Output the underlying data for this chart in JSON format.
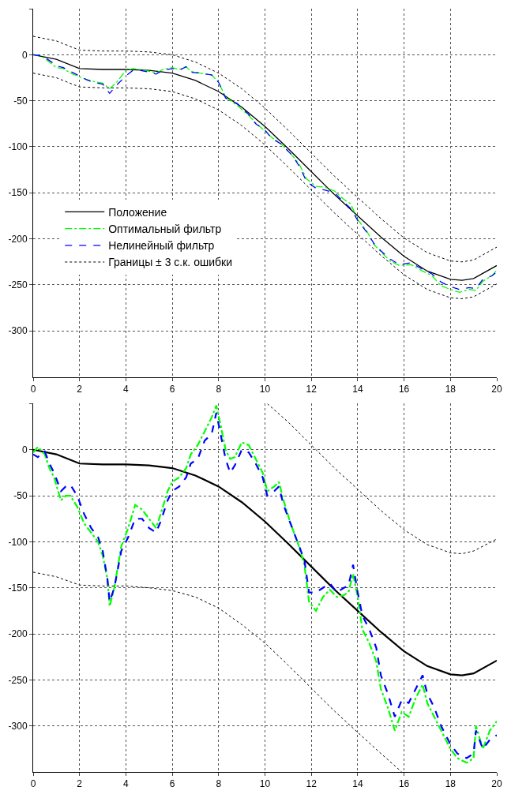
{
  "chart_data": [
    {
      "type": "line",
      "xlim": [
        0,
        20
      ],
      "ylim": [
        -350,
        50
      ],
      "xticks": [
        0,
        2,
        4,
        6,
        8,
        10,
        12,
        14,
        16,
        18,
        20
      ],
      "yticks": [
        -300,
        -250,
        -200,
        -150,
        -100,
        -50,
        0,
        {
          "value": 50,
          "label": null
        }
      ],
      "grid": true,
      "legend": "left",
      "series": [
        {
          "name": "Положение",
          "color": "#000000",
          "line_style": "solid",
          "x": [
            0,
            1,
            2,
            3,
            4,
            5,
            6,
            7,
            8,
            9,
            10,
            11,
            12,
            13,
            14,
            15,
            16,
            17,
            18,
            18.5,
            19,
            20
          ],
          "values": [
            0,
            -5,
            -15,
            -16,
            -16,
            -17,
            -20,
            -28,
            -40,
            -57,
            -78,
            -102,
            -127,
            -152,
            -175,
            -198,
            -219,
            -235,
            -244,
            -245,
            -243,
            -229
          ]
        },
        {
          "name": "Оптимальный фильтр",
          "color": "#00ff00",
          "line_style": "dashdot",
          "x": [
            0,
            0.3,
            0.5,
            0.8,
            1,
            1.3,
            1.6,
            2,
            2.3,
            2.6,
            3,
            3.3,
            3.6,
            4,
            4.3,
            4.6,
            5,
            5.3,
            5.6,
            6,
            6.3,
            6.6,
            6.8,
            7.2,
            7.7,
            8,
            8.3,
            8.8,
            9.3,
            9.6,
            10,
            10.3,
            10.7,
            11.2,
            11.5,
            11.8,
            12.2,
            12.6,
            13,
            13.4,
            13.7,
            14,
            14.4,
            14.7,
            15,
            15.4,
            15.8,
            16.3,
            16.8,
            17.2,
            17.6,
            18,
            18.4,
            18.8,
            19.1,
            19.4,
            19.8,
            20
          ],
          "values": [
            0,
            -1,
            -4,
            -10,
            -14,
            -15,
            -20,
            -24,
            -27,
            -29,
            -31,
            -37,
            -30,
            -17,
            -15,
            -16,
            -18,
            -20,
            -16,
            -14,
            -16,
            -13,
            -18,
            -20,
            -22,
            -30,
            -46,
            -55,
            -66,
            -74,
            -83,
            -90,
            -97,
            -110,
            -120,
            -135,
            -143,
            -144,
            -148,
            -157,
            -162,
            -179,
            -192,
            -206,
            -214,
            -224,
            -229,
            -228,
            -235,
            -240,
            -251,
            -255,
            -258,
            -255,
            -256,
            -246,
            -240,
            -234
          ]
        },
        {
          "name": "Нелинейный фильтр",
          "color": "#0000ff",
          "line_style": "dashed",
          "x": [
            0,
            0.3,
            0.5,
            0.8,
            1,
            1.3,
            1.6,
            2,
            2.3,
            2.6,
            3,
            3.3,
            3.6,
            4,
            4.3,
            4.6,
            5,
            5.3,
            5.6,
            6,
            6.3,
            6.6,
            6.8,
            7.2,
            7.7,
            8,
            8.3,
            8.8,
            9.3,
            9.6,
            10,
            10.3,
            10.7,
            11.2,
            11.5,
            11.8,
            12.2,
            12.6,
            13,
            13.4,
            13.7,
            14,
            14.4,
            14.7,
            15,
            15.4,
            15.8,
            16.3,
            16.8,
            17.2,
            17.6,
            18,
            18.4,
            18.8,
            19.1,
            19.4,
            19.8,
            20
          ],
          "values": [
            0,
            -1,
            -3,
            -8,
            -12,
            -14,
            -18,
            -23,
            -27,
            -30,
            -32,
            -42,
            -33,
            -23,
            -17,
            -17,
            -19,
            -21,
            -17,
            -15,
            -17,
            -13,
            -19,
            -20,
            -22,
            -30,
            -47,
            -53,
            -65,
            -75,
            -82,
            -91,
            -97,
            -110,
            -122,
            -138,
            -145,
            -147,
            -150,
            -160,
            -167,
            -180,
            -193,
            -205,
            -213,
            -222,
            -228,
            -226,
            -233,
            -238,
            -247,
            -252,
            -255,
            -253,
            -254,
            -244,
            -240,
            -236
          ]
        },
        {
          "name": "Границы ± 3 с.к. ошибки",
          "color": "#000000",
          "line_style": "dotted",
          "x": [
            0,
            1,
            2,
            3,
            4,
            5,
            6,
            7,
            8,
            9,
            10,
            11,
            12,
            13,
            14,
            15,
            16,
            17,
            18,
            18.5,
            19,
            20
          ],
          "values": [
            20,
            15,
            5,
            4,
            4,
            3,
            0,
            -8,
            -20,
            -37,
            -58,
            -82,
            -107,
            -132,
            -155,
            -178,
            -199,
            -215,
            -224,
            -225,
            -223,
            -209
          ]
        },
        {
          "color": "#000000",
          "line_style": "dotted",
          "x": [
            0,
            1,
            2,
            3,
            4,
            5,
            6,
            7,
            8,
            9,
            10,
            11,
            12,
            13,
            14,
            15,
            16,
            17,
            18,
            18.5,
            19,
            20
          ],
          "values": [
            -20,
            -25,
            -35,
            -36,
            -36,
            -37,
            -40,
            -48,
            -60,
            -77,
            -98,
            -122,
            -147,
            -172,
            -195,
            -218,
            -239,
            -255,
            -264,
            -265,
            -263,
            -249
          ]
        }
      ]
    },
    {
      "type": "line",
      "xlim": [
        0,
        20
      ],
      "ylim": [
        -350,
        50
      ],
      "xticks": [
        0,
        2,
        4,
        6,
        8,
        10,
        12,
        14,
        16,
        18,
        20
      ],
      "yticks": [
        -300,
        -250,
        -200,
        -150,
        -100,
        -50,
        0,
        {
          "value": 50,
          "label": null
        }
      ],
      "grid": true,
      "series": [
        {
          "color": "#000000",
          "line_style": "solid",
          "x": [
            0,
            1,
            2,
            3,
            4,
            5,
            6,
            7,
            8,
            9,
            10,
            11,
            12,
            13,
            14,
            15,
            16,
            17,
            18,
            18.5,
            19,
            20
          ],
          "values": [
            0,
            -5,
            -15,
            -16,
            -16,
            -17,
            -20,
            -28,
            -40,
            -57,
            -78,
            -102,
            -127,
            -152,
            -175,
            -198,
            -219,
            -235,
            -244,
            -245,
            -243,
            -229
          ]
        },
        {
          "color": "#00ff00",
          "line_style": "dashdot",
          "x": [
            0,
            0.2,
            0.5,
            0.7,
            0.9,
            1.2,
            1.4,
            1.6,
            1.9,
            2.2,
            2.5,
            2.8,
            3,
            3.2,
            3.3,
            3.5,
            3.8,
            4.1,
            4.4,
            4.7,
            5,
            5.3,
            5.5,
            5.8,
            6,
            6.3,
            6.6,
            6.8,
            7.1,
            7.4,
            7.7,
            7.9,
            8.1,
            8.3,
            8.5,
            8.7,
            9,
            9.3,
            9.6,
            9.9,
            10.1,
            10.4,
            10.6,
            10.8,
            11.1,
            11.4,
            11.7,
            11.9,
            12.2,
            12.5,
            12.8,
            13.1,
            13.4,
            13.6,
            13.8,
            14,
            14.2,
            14.5,
            14.8,
            15,
            15.3,
            15.6,
            15.9,
            16.2,
            16.5,
            16.8,
            17,
            17.3,
            17.6,
            18,
            18.3,
            18.7,
            19,
            19.1,
            19.4,
            19.7,
            20
          ],
          "values": [
            -3,
            3,
            -5,
            -20,
            -30,
            -55,
            -50,
            -50,
            -62,
            -80,
            -90,
            -100,
            -115,
            -140,
            -170,
            -150,
            -105,
            -85,
            -60,
            -65,
            -75,
            -85,
            -70,
            -45,
            -35,
            -30,
            -20,
            -5,
            5,
            20,
            35,
            48,
            25,
            0,
            -10,
            -8,
            8,
            5,
            -10,
            -25,
            -45,
            -40,
            -35,
            -55,
            -80,
            -100,
            -125,
            -165,
            -175,
            -160,
            -152,
            -160,
            -158,
            -155,
            -135,
            -160,
            -195,
            -210,
            -230,
            -260,
            -280,
            -305,
            -285,
            -290,
            -270,
            -255,
            -275,
            -290,
            -305,
            -325,
            -335,
            -340,
            -335,
            -300,
            -325,
            -305,
            -295
          ]
        },
        {
          "color": "#0000ff",
          "line_style": "dashed",
          "x": [
            0,
            0.2,
            0.5,
            0.7,
            0.9,
            1.2,
            1.4,
            1.6,
            1.9,
            2.2,
            2.5,
            2.8,
            3,
            3.2,
            3.3,
            3.5,
            3.8,
            4.1,
            4.4,
            4.7,
            5,
            5.3,
            5.5,
            5.8,
            6,
            6.3,
            6.6,
            6.8,
            7.1,
            7.4,
            7.7,
            7.9,
            8.1,
            8.3,
            8.5,
            8.7,
            9,
            9.3,
            9.6,
            9.9,
            10.1,
            10.4,
            10.6,
            10.8,
            11.1,
            11.4,
            11.7,
            11.9,
            12.2,
            12.5,
            12.8,
            13.1,
            13.4,
            13.6,
            13.8,
            14,
            14.2,
            14.5,
            14.8,
            15,
            15.3,
            15.6,
            15.9,
            16.2,
            16.5,
            16.8,
            17,
            17.3,
            17.6,
            18,
            18.3,
            18.7,
            19,
            19.1,
            19.4,
            19.7,
            20
          ],
          "values": [
            -5,
            -8,
            -2,
            -15,
            -25,
            -45,
            -40,
            -38,
            -50,
            -70,
            -85,
            -95,
            -110,
            -140,
            -165,
            -150,
            -110,
            -95,
            -75,
            -75,
            -85,
            -90,
            -78,
            -55,
            -45,
            -40,
            -30,
            -15,
            -10,
            10,
            17,
            40,
            15,
            -10,
            -25,
            -17,
            0,
            -3,
            -15,
            -30,
            -50,
            -45,
            -40,
            -60,
            -80,
            -100,
            -120,
            -155,
            -155,
            -150,
            -145,
            -155,
            -150,
            -148,
            -125,
            -155,
            -180,
            -195,
            -215,
            -245,
            -265,
            -290,
            -272,
            -275,
            -260,
            -245,
            -265,
            -280,
            -300,
            -320,
            -330,
            -335,
            -330,
            -305,
            -325,
            -315,
            -310
          ]
        },
        {
          "color": "#000000",
          "line_style": "dotted",
          "x": [
            10.1,
            11,
            12,
            13,
            14,
            15,
            16,
            17,
            18,
            18.5,
            19,
            20
          ],
          "values": [
            50,
            30,
            5,
            -20,
            -43,
            -66,
            -87,
            -103,
            -112,
            -113,
            -110,
            -97
          ]
        },
        {
          "color": "#000000",
          "line_style": "dotted",
          "x": [
            0,
            1,
            2,
            3,
            4,
            5,
            6,
            7,
            8,
            9,
            10,
            11,
            12,
            13,
            14,
            15,
            15.9
          ],
          "values": [
            -133,
            -138,
            -147,
            -148,
            -148,
            -150,
            -153,
            -160,
            -172,
            -190,
            -210,
            -234,
            -259,
            -284,
            -307,
            -330,
            -350
          ]
        }
      ]
    }
  ]
}
